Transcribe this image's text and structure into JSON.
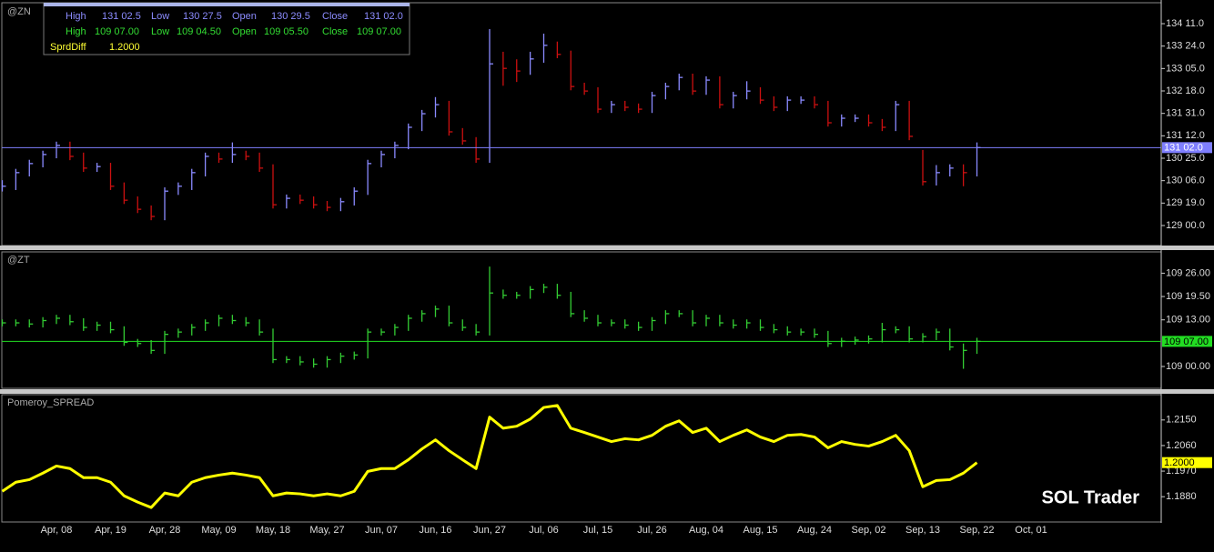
{
  "info_box": {
    "rows": [
      [
        "High",
        "131 02.5",
        "Low",
        "130 27.5",
        "Open",
        "130 29.5",
        "Close",
        "131 02.0"
      ],
      [
        "High",
        "109 07.00",
        "Low",
        "109 04.50",
        "Open",
        "109 05.50",
        "Close",
        "109 07.00"
      ],
      [
        "SprdDiff",
        "1.2000"
      ]
    ]
  },
  "watermark": "SOL Trader",
  "chart_data": [
    {
      "type": "hlc",
      "title": "@ZN",
      "up_color": "#8a8aff",
      "down_color": "#cc1010",
      "last_color": "#7f7fff",
      "ylim": [
        128.47,
        134.85
      ],
      "yticks": [
        {
          "value": 134.34375,
          "label": "134 11.0"
        },
        {
          "value": 133.75,
          "label": "133 24.0"
        },
        {
          "value": 133.15625,
          "label": "133 05.0"
        },
        {
          "value": 132.5625,
          "label": "132 18.0"
        },
        {
          "value": 131.96875,
          "label": "131 31.0"
        },
        {
          "value": 131.375,
          "label": "131 12.0"
        },
        {
          "value": 130.78125,
          "label": "130 25.0"
        },
        {
          "value": 130.1875,
          "label": "130 06.0"
        },
        {
          "value": 129.59375,
          "label": "129 19.0"
        },
        {
          "value": 129,
          "label": "129 00.0"
        }
      ],
      "last": {
        "value": 131.0625,
        "label": "131 02.0"
      },
      "high": [
        130.2,
        130.5,
        130.74,
        130.98,
        131.22,
        131.22,
        130.93,
        130.66,
        130.66,
        130.14,
        129.77,
        129.53,
        130.01,
        130.14,
        130.5,
        130.93,
        130.93,
        131.2,
        130.98,
        130.93,
        130.62,
        129.82,
        129.82,
        129.77,
        129.65,
        129.73,
        130.01,
        130.74,
        130.98,
        131.22,
        131.7,
        132.06,
        132.4,
        132.3,
        131.58,
        131.34,
        134.2,
        133.6,
        133.4,
        133.6,
        134.08,
        133.87,
        133.63,
        132.78,
        132.66,
        132.3,
        132.3,
        132.23,
        132.54,
        132.78,
        133.02,
        133.02,
        132.95,
        132.95,
        132.54,
        132.82,
        132.66,
        132.42,
        132.42,
        132.42,
        132.42,
        132.3,
        131.94,
        131.94,
        131.94,
        131.82,
        132.3,
        132.3,
        131.0,
        130.6,
        130.62,
        130.62,
        131.2
      ],
      "low": [
        129.9,
        129.94,
        130.3,
        130.54,
        130.78,
        130.73,
        130.42,
        130.42,
        129.94,
        129.57,
        129.33,
        129.14,
        129.14,
        129.81,
        129.94,
        130.3,
        130.66,
        130.66,
        130.73,
        130.42,
        129.45,
        129.45,
        129.57,
        129.45,
        129.38,
        129.38,
        129.53,
        129.81,
        130.54,
        130.78,
        131.02,
        131.5,
        131.86,
        131.38,
        131.14,
        130.66,
        130.66,
        132.7,
        132.8,
        132.99,
        133.31,
        133.43,
        132.58,
        132.46,
        131.98,
        131.98,
        132.03,
        131.98,
        131.98,
        132.34,
        132.58,
        132.46,
        132.46,
        132.1,
        132.1,
        132.34,
        132.22,
        132.03,
        132.03,
        132.22,
        132.1,
        131.62,
        131.62,
        131.74,
        131.62,
        131.5,
        131.5,
        131.26,
        130.06,
        130.06,
        130.3,
        130.04,
        130.3
      ],
      "close": [
        130.04,
        130.4,
        130.64,
        130.88,
        131.12,
        130.83,
        130.52,
        130.56,
        130.04,
        129.67,
        129.43,
        129.24,
        129.91,
        130.04,
        130.4,
        130.83,
        130.76,
        130.88,
        130.83,
        130.52,
        129.55,
        129.72,
        129.67,
        129.55,
        129.48,
        129.63,
        129.91,
        130.64,
        130.88,
        131.12,
        131.6,
        131.96,
        132.2,
        131.48,
        131.24,
        130.76,
        133.28,
        133.16,
        133.09,
        133.41,
        133.77,
        133.53,
        132.68,
        132.56,
        132.08,
        132.2,
        132.13,
        132.08,
        132.44,
        132.68,
        132.92,
        132.56,
        132.85,
        132.2,
        132.44,
        132.56,
        132.32,
        132.13,
        132.32,
        132.32,
        132.2,
        131.72,
        131.84,
        131.84,
        131.72,
        131.6,
        132.2,
        131.36,
        130.16,
        130.4,
        130.52,
        130.4,
        131.0625
      ]
    },
    {
      "type": "hlc",
      "title": "@ZT",
      "up_color": "#33cc33",
      "down_color": "#33cc33",
      "last_color": "#22dd22",
      "ylim": [
        108.81,
        109.99
      ],
      "yticks": [
        {
          "value": 109.8125,
          "label": "109 26.00"
        },
        {
          "value": 109.609375,
          "label": "109 19.50"
        },
        {
          "value": 109.40625,
          "label": "109 13.00"
        },
        {
          "value": 109,
          "label": "109 00.00"
        }
      ],
      "last": {
        "value": 109.21875,
        "label": "109 07.00"
      },
      "high": [
        109.41,
        109.41,
        109.41,
        109.43,
        109.45,
        109.45,
        109.42,
        109.39,
        109.39,
        109.35,
        109.24,
        109.23,
        109.31,
        109.33,
        109.37,
        109.41,
        109.45,
        109.45,
        109.43,
        109.41,
        109.33,
        109.09,
        109.09,
        109.07,
        109.09,
        109.12,
        109.13,
        109.33,
        109.33,
        109.37,
        109.45,
        109.49,
        109.53,
        109.53,
        109.41,
        109.37,
        109.87,
        109.67,
        109.65,
        109.7,
        109.72,
        109.72,
        109.65,
        109.49,
        109.45,
        109.41,
        109.41,
        109.39,
        109.43,
        109.49,
        109.49,
        109.49,
        109.45,
        109.45,
        109.41,
        109.41,
        109.41,
        109.37,
        109.35,
        109.33,
        109.33,
        109.31,
        109.25,
        109.26,
        109.27,
        109.38,
        109.35,
        109.35,
        109.29,
        109.33,
        109.33,
        109.2,
        109.25
      ],
      "low": [
        109.35,
        109.35,
        109.34,
        109.34,
        109.37,
        109.36,
        109.31,
        109.31,
        109.29,
        109.18,
        109.17,
        109.11,
        109.11,
        109.25,
        109.27,
        109.31,
        109.35,
        109.37,
        109.35,
        109.27,
        109.03,
        109.03,
        109.01,
        108.99,
        108.99,
        109.03,
        109.06,
        109.07,
        109.27,
        109.27,
        109.31,
        109.39,
        109.43,
        109.35,
        109.31,
        109.27,
        109.27,
        109.59,
        109.59,
        109.59,
        109.64,
        109.59,
        109.43,
        109.39,
        109.35,
        109.35,
        109.33,
        109.31,
        109.31,
        109.37,
        109.43,
        109.35,
        109.35,
        109.35,
        109.33,
        109.33,
        109.31,
        109.29,
        109.27,
        109.27,
        109.25,
        109.17,
        109.17,
        109.19,
        109.2,
        109.21,
        109.29,
        109.21,
        109.21,
        109.23,
        109.14,
        108.98,
        109.11
      ],
      "close": [
        109.38,
        109.38,
        109.37,
        109.4,
        109.42,
        109.39,
        109.34,
        109.36,
        109.32,
        109.21,
        109.2,
        109.14,
        109.28,
        109.3,
        109.34,
        109.38,
        109.42,
        109.4,
        109.38,
        109.3,
        109.06,
        109.06,
        109.04,
        109.02,
        109.06,
        109.09,
        109.1,
        109.3,
        109.3,
        109.34,
        109.42,
        109.46,
        109.5,
        109.38,
        109.34,
        109.3,
        109.64,
        109.62,
        109.62,
        109.67,
        109.69,
        109.62,
        109.46,
        109.42,
        109.38,
        109.38,
        109.36,
        109.34,
        109.4,
        109.46,
        109.46,
        109.38,
        109.42,
        109.38,
        109.36,
        109.38,
        109.34,
        109.32,
        109.3,
        109.3,
        109.28,
        109.2,
        109.22,
        109.23,
        109.24,
        109.32,
        109.32,
        109.24,
        109.26,
        109.3,
        109.17,
        109.14,
        109.21875
      ]
    },
    {
      "type": "line",
      "title": "Pomeroy_SPREAD",
      "color": "#ffff00",
      "last_color": "#ffff00",
      "ylim": [
        1.1791,
        1.2239
      ],
      "yticks": [
        {
          "value": 1.215,
          "label": "1.2150"
        },
        {
          "value": 1.206,
          "label": "1.2060"
        },
        {
          "value": 1.197,
          "label": "1.1970"
        },
        {
          "value": 1.188,
          "label": "1.1880"
        }
      ],
      "last": {
        "value": 1.2,
        "label": "1.2000"
      },
      "categories": [
        null,
        null,
        null,
        null,
        "Apr, 08",
        null,
        null,
        null,
        "Apr, 19",
        null,
        null,
        null,
        "Apr, 28",
        null,
        null,
        null,
        "May, 09",
        null,
        null,
        null,
        "May, 18",
        null,
        null,
        null,
        "May, 27",
        null,
        null,
        null,
        "Jun, 07",
        null,
        null,
        null,
        "Jun, 16",
        null,
        null,
        null,
        "Jun, 27",
        null,
        null,
        null,
        "Jul, 06",
        null,
        null,
        null,
        "Jul, 15",
        null,
        null,
        null,
        "Jul, 26",
        null,
        null,
        null,
        "Aug, 04",
        null,
        null,
        null,
        "Aug, 15",
        null,
        null,
        null,
        "Aug, 24",
        null,
        null,
        null,
        "Sep, 02",
        null,
        null,
        null,
        "Sep, 13",
        null,
        null,
        null,
        "Sep, 22",
        null,
        null,
        null,
        "Oct, 01"
      ],
      "values": [
        1.1899,
        1.1931,
        1.194,
        1.1963,
        1.1988,
        1.1979,
        1.1947,
        1.1947,
        1.1931,
        1.1883,
        1.1861,
        1.1842,
        1.1893,
        1.1883,
        1.1931,
        1.1947,
        1.1956,
        1.1963,
        1.1956,
        1.1947,
        1.1883,
        1.1893,
        1.189,
        1.1883,
        1.189,
        1.1883,
        1.1899,
        1.1969,
        1.1979,
        1.1979,
        1.201,
        1.2048,
        1.208,
        1.2042,
        1.201,
        1.1979,
        1.216,
        1.2121,
        1.2128,
        1.2153,
        1.2194,
        1.2201,
        1.2121,
        1.2106,
        1.209,
        1.2074,
        1.2084,
        1.208,
        1.2096,
        1.2128,
        1.2147,
        1.2106,
        1.2121,
        1.2074,
        1.2096,
        1.2115,
        1.209,
        1.2074,
        1.2096,
        1.2099,
        1.209,
        1.2052,
        1.2074,
        1.2064,
        1.2058,
        1.2074,
        1.2096,
        1.2042,
        1.1915,
        1.1937,
        1.194,
        1.1963,
        1.2,
        null,
        null,
        null,
        null
      ]
    }
  ]
}
